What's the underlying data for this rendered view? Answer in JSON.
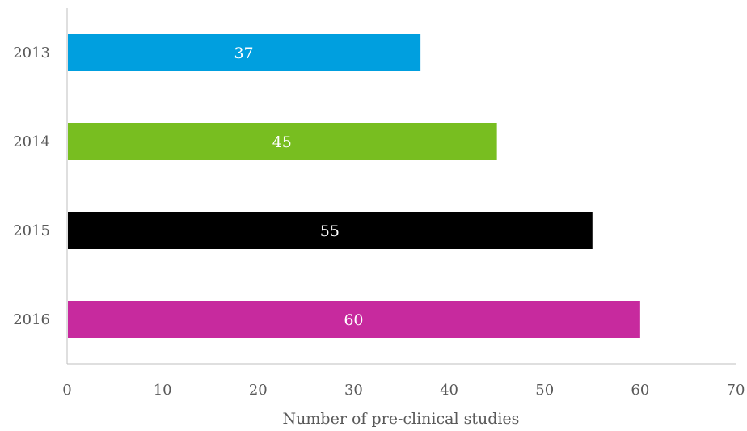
{
  "chart_data": {
    "type": "bar",
    "orientation": "horizontal",
    "categories": [
      "2013",
      "2014",
      "2015",
      "2016"
    ],
    "values": [
      37,
      45,
      55,
      60
    ],
    "colors": [
      "#009FDF",
      "#78BE20",
      "#000000",
      "#C72A9E"
    ],
    "data_labels": [
      "37",
      "45",
      "55",
      "60"
    ],
    "xlabel": "Number of pre-clinical studies",
    "ylabel": "",
    "xlim": [
      0,
      70
    ],
    "xticks": [
      "0",
      "10",
      "20",
      "30",
      "40",
      "50",
      "60",
      "70"
    ],
    "grid": false,
    "legend": "none"
  }
}
